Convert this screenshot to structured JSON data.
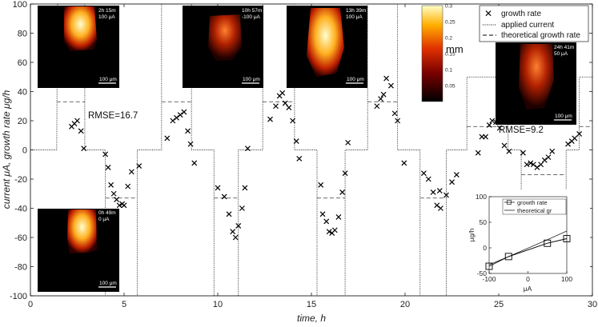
{
  "chart_data": [
    {
      "type": "scatter",
      "xlabel": "time, h",
      "ylabel": "current μA, growth rate μg/h",
      "xlim": [
        0,
        30
      ],
      "ylim": [
        -100,
        100
      ],
      "xticks": [
        0,
        5,
        10,
        15,
        20,
        25,
        30
      ],
      "yticks": [
        -100,
        -80,
        -60,
        -40,
        -20,
        0,
        20,
        40,
        60,
        80,
        100
      ],
      "legend": {
        "position": "top-right",
        "entries": [
          "growth rate",
          "applied current",
          "theoretical growth rate"
        ]
      },
      "series": [
        {
          "name": "growth rate",
          "marker": "x",
          "points": [
            [
              2.2,
              16
            ],
            [
              2.35,
              18
            ],
            [
              2.5,
              20
            ],
            [
              2.7,
              13
            ],
            [
              2.85,
              1
            ],
            [
              4.0,
              -3
            ],
            [
              4.15,
              -12
            ],
            [
              4.3,
              -24
            ],
            [
              4.45,
              -30
            ],
            [
              4.6,
              -34
            ],
            [
              4.75,
              -38
            ],
            [
              4.9,
              -37
            ],
            [
              5.0,
              -38
            ],
            [
              5.2,
              -25
            ],
            [
              5.4,
              -15
            ],
            [
              5.8,
              -11
            ],
            [
              7.3,
              8
            ],
            [
              7.6,
              20
            ],
            [
              7.8,
              22
            ],
            [
              8.0,
              24
            ],
            [
              8.2,
              26
            ],
            [
              8.4,
              13
            ],
            [
              8.55,
              4
            ],
            [
              8.75,
              -9
            ],
            [
              10.0,
              -26
            ],
            [
              10.35,
              -32
            ],
            [
              10.6,
              -44
            ],
            [
              10.8,
              -56
            ],
            [
              10.95,
              -60
            ],
            [
              11.1,
              -52
            ],
            [
              11.3,
              -40
            ],
            [
              11.45,
              -26
            ],
            [
              11.6,
              1
            ],
            [
              12.8,
              21
            ],
            [
              13.1,
              30
            ],
            [
              13.3,
              37
            ],
            [
              13.45,
              39
            ],
            [
              13.6,
              32
            ],
            [
              13.8,
              29
            ],
            [
              14.0,
              20
            ],
            [
              14.2,
              6
            ],
            [
              14.35,
              -6
            ],
            [
              15.5,
              -24
            ],
            [
              15.6,
              -44
            ],
            [
              15.8,
              -49
            ],
            [
              15.95,
              -56
            ],
            [
              16.1,
              -57
            ],
            [
              16.25,
              -55
            ],
            [
              16.45,
              -46
            ],
            [
              16.65,
              -29
            ],
            [
              16.8,
              -16
            ],
            [
              16.95,
              5
            ],
            [
              18.5,
              30
            ],
            [
              18.7,
              35
            ],
            [
              18.85,
              38
            ],
            [
              19.0,
              49
            ],
            [
              19.25,
              44
            ],
            [
              19.45,
              25
            ],
            [
              19.6,
              20
            ],
            [
              19.95,
              -9
            ],
            [
              21.0,
              -16
            ],
            [
              21.25,
              -20
            ],
            [
              21.5,
              -29
            ],
            [
              21.7,
              -38
            ],
            [
              21.9,
              -40
            ],
            [
              21.85,
              -28
            ],
            [
              22.2,
              -31
            ],
            [
              22.5,
              -22
            ],
            [
              22.75,
              -17
            ],
            [
              23.9,
              -2
            ],
            [
              24.1,
              9
            ],
            [
              24.3,
              9
            ],
            [
              24.5,
              17
            ],
            [
              24.65,
              20
            ],
            [
              24.85,
              19
            ],
            [
              25.05,
              15
            ],
            [
              25.3,
              3
            ],
            [
              25.55,
              -1
            ],
            [
              26.3,
              -2
            ],
            [
              26.5,
              -10
            ],
            [
              26.7,
              -9
            ],
            [
              26.85,
              -10
            ],
            [
              27.05,
              -12
            ],
            [
              27.25,
              -10
            ],
            [
              27.45,
              -7
            ],
            [
              27.65,
              -5
            ],
            [
              27.85,
              -1
            ],
            [
              28.7,
              4
            ],
            [
              28.9,
              6
            ],
            [
              29.05,
              8
            ],
            [
              29.3,
              11
            ]
          ]
        },
        {
          "name": "applied current",
          "style": "dotted",
          "points": [
            [
              0,
              0
            ],
            [
              1.4,
              0
            ],
            [
              1.45,
              100
            ],
            [
              2.9,
              100
            ],
            [
              2.9,
              0
            ],
            [
              4.0,
              0
            ],
            [
              4.0,
              -100
            ],
            [
              5.7,
              -100
            ],
            [
              5.7,
              0
            ],
            [
              7.0,
              0
            ],
            [
              7.0,
              100
            ],
            [
              8.6,
              100
            ],
            [
              8.6,
              0
            ],
            [
              9.8,
              0
            ],
            [
              9.8,
              -100
            ],
            [
              11.1,
              -100
            ],
            [
              11.1,
              0
            ],
            [
              12.4,
              0
            ],
            [
              12.4,
              100
            ],
            [
              14.1,
              100
            ],
            [
              14.1,
              0
            ],
            [
              15.3,
              0
            ],
            [
              15.3,
              -100
            ],
            [
              16.8,
              -100
            ],
            [
              16.8,
              0
            ],
            [
              18.0,
              0
            ],
            [
              18.0,
              100
            ],
            [
              19.6,
              100
            ],
            [
              19.6,
              0
            ],
            [
              20.8,
              0
            ],
            [
              20.8,
              -100
            ],
            [
              22.2,
              -100
            ],
            [
              22.2,
              0
            ],
            [
              23.3,
              0
            ],
            [
              23.3,
              50
            ],
            [
              25.5,
              50
            ],
            [
              25.5,
              0
            ],
            [
              26.2,
              0
            ],
            [
              26.2,
              -50
            ],
            [
              28.6,
              -50
            ],
            [
              28.6,
              0
            ],
            [
              29.3,
              0
            ],
            [
              29.3,
              50
            ],
            [
              30,
              50
            ]
          ]
        },
        {
          "name": "theoretical growth rate",
          "style": "dashed",
          "segments": [
            [
              1.4,
              2.9,
              33
            ],
            [
              4.0,
              5.7,
              -33
            ],
            [
              7.0,
              8.6,
              33
            ],
            [
              9.8,
              11.1,
              -33
            ],
            [
              12.4,
              14.1,
              33
            ],
            [
              15.3,
              16.8,
              -33
            ],
            [
              18.0,
              19.6,
              33
            ],
            [
              20.8,
              22.2,
              -33
            ],
            [
              23.3,
              25.5,
              16
            ],
            [
              26.2,
              28.6,
              -17
            ],
            [
              29.3,
              30,
              16
            ]
          ]
        }
      ],
      "annotations": [
        "RMSE=16.7",
        "RMSE=9.2"
      ],
      "colorbar": {
        "label": "mm",
        "ticks": [
          "0.3",
          "0.25",
          "0.2",
          "0.15",
          "0.1",
          "0.05"
        ]
      },
      "image_insets": [
        {
          "time": "2h 15m",
          "current": "100 μA",
          "scale": "100 μm"
        },
        {
          "time": "10h 57m",
          "current": "-100 μA",
          "scale": "100 μm"
        },
        {
          "time": "13h 39m",
          "current": "100 μA",
          "scale": "100 μm"
        },
        {
          "time": "24h 41m",
          "current": "50 μA",
          "scale": "100 μm"
        },
        {
          "time": "0h 49m",
          "current": "0 μA",
          "scale": "100 μm"
        }
      ]
    },
    {
      "type": "line",
      "xlabel": "μA",
      "ylabel": "μg/h",
      "xlim": [
        -100,
        100
      ],
      "ylim": [
        -50,
        100
      ],
      "xticks": [
        -100,
        0,
        100
      ],
      "yticks": [
        -50,
        0,
        50,
        100
      ],
      "legend": {
        "position": "top",
        "entries": [
          "growth rate",
          "theoretical gr"
        ]
      },
      "series": [
        {
          "name": "growth rate",
          "marker": "square",
          "points": [
            [
              -100,
              -36
            ],
            [
              -50,
              -17
            ],
            [
              50,
              9
            ],
            [
              100,
              18
            ]
          ]
        },
        {
          "name": "theoretical gr",
          "points": [
            [
              -100,
              -33
            ],
            [
              -50,
              -17
            ],
            [
              50,
              16
            ],
            [
              100,
              33
            ]
          ]
        }
      ]
    }
  ]
}
